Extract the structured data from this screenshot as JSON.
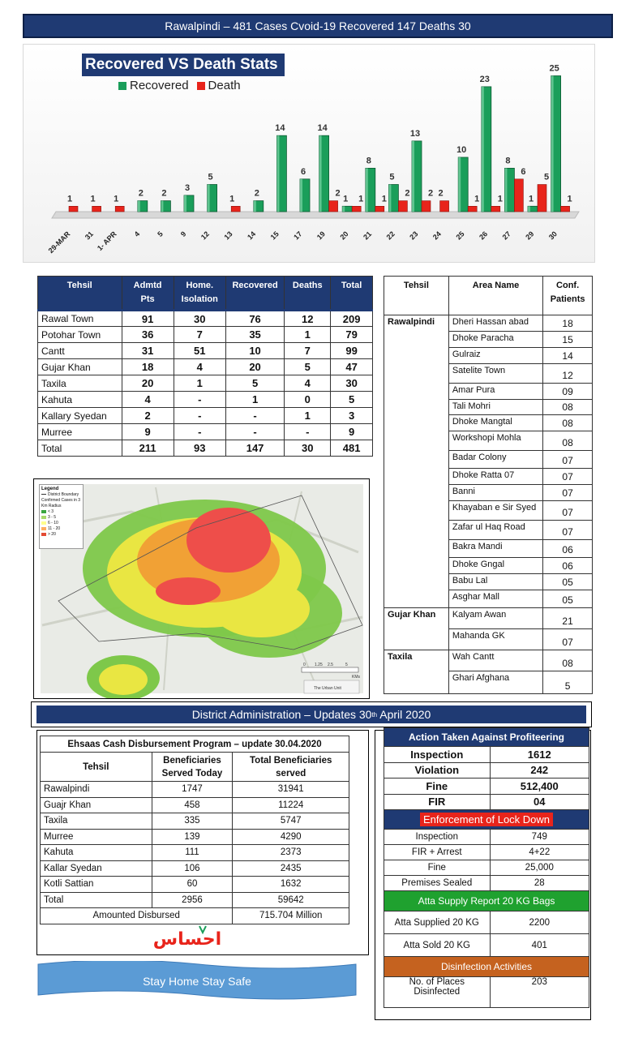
{
  "banner": "Rawalpindi – 481 Cases Cvoid-19 Recovered 147 Deaths 30",
  "chart_data": {
    "type": "bar",
    "title": "Recovered VS Death Stats",
    "categories": [
      "29-MAR",
      "31",
      "1- APR",
      "4",
      "5",
      "9",
      "12",
      "13",
      "14",
      "15",
      "17",
      "19",
      "20",
      "21",
      "22",
      "23",
      "24",
      "25",
      "26",
      "27",
      "29",
      "30"
    ],
    "series": [
      {
        "name": "Recovered",
        "color": "#1a9e5a",
        "values": [
          null,
          null,
          null,
          2,
          2,
          3,
          5,
          null,
          2,
          14,
          6,
          14,
          1,
          8,
          5,
          13,
          null,
          10,
          23,
          8,
          1,
          25
        ]
      },
      {
        "name": "Death",
        "color": "#e8241b",
        "values": [
          1,
          1,
          1,
          null,
          null,
          null,
          null,
          1,
          null,
          null,
          null,
          2,
          1,
          1,
          2,
          2,
          2,
          1,
          1,
          6,
          5,
          1
        ]
      }
    ],
    "colors": {
      "recovered": "#1a9e5a",
      "death": "#e8241b"
    }
  },
  "tehsil_table": {
    "headers": [
      "Tehsil",
      "Admtd\nPts",
      "Home.\nIsolation",
      "Recovered",
      "Deaths",
      "Total"
    ],
    "rows": [
      [
        "Rawal Town",
        "91",
        "30",
        "76",
        "12",
        "209"
      ],
      [
        "Potohar Town",
        "36",
        "7",
        "35",
        "1",
        "79"
      ],
      [
        "Cantt",
        "31",
        "51",
        "10",
        "7",
        "99"
      ],
      [
        "Gujar Khan",
        "18",
        "4",
        "20",
        "5",
        "47"
      ],
      [
        "Taxila",
        "20",
        "1",
        "5",
        "4",
        "30"
      ],
      [
        "Kahuta",
        "4",
        "-",
        "1",
        "0",
        "5"
      ],
      [
        "Kallary Syedan",
        "2",
        "-",
        "-",
        "1",
        "3"
      ],
      [
        "Murree",
        "9",
        "-",
        "-",
        "-",
        "9"
      ],
      [
        "Total",
        "211",
        "93",
        "147",
        "30",
        "481"
      ]
    ]
  },
  "area_table": {
    "headers": [
      "Tehsil",
      "Area Name",
      "Conf.\nPatients"
    ],
    "groups": [
      {
        "tehsil": "Rawalpindi",
        "rows": [
          [
            "Dheri Hassan abad",
            "18"
          ],
          [
            "Dhoke Paracha",
            "15"
          ],
          [
            "Gulraiz",
            "14"
          ],
          [
            "Satelite Town",
            "12"
          ],
          [
            "Amar Pura",
            "09"
          ],
          [
            "Tali Mohri",
            "08"
          ],
          [
            "Dhoke Mangtal",
            "08"
          ],
          [
            "Workshopi Mohla",
            "08"
          ],
          [
            "Badar Colony",
            "07"
          ],
          [
            "Dhoke Ratta 07",
            "07"
          ],
          [
            "Banni",
            "07"
          ],
          [
            "Khayaban e Sir Syed",
            "07"
          ],
          [
            "Zafar ul Haq Road",
            "07"
          ],
          [
            "Bakra Mandi",
            "06"
          ],
          [
            "Dhoke Gngal",
            "06"
          ],
          [
            "Babu Lal",
            "05"
          ],
          [
            "Asghar Mall",
            "05"
          ]
        ]
      },
      {
        "tehsil": "Gujar Khan",
        "rows": [
          [
            "Kalyam Awan",
            "21"
          ],
          [
            "Mahanda GK",
            "07"
          ]
        ]
      },
      {
        "tehsil": "Taxila",
        "rows": [
          [
            "Wah Cantt",
            "08"
          ],
          [
            "Ghari Afghana",
            "5"
          ]
        ]
      }
    ]
  },
  "map": {
    "legend_title": "Legend",
    "legend_items": [
      "District Boundary",
      "Confirmed Cases in 3 Km Radius",
      "< 3",
      "3 - 5",
      "6 - 10",
      "11 - 20",
      "> 20"
    ],
    "scale_labels": [
      "0",
      "1.25",
      "2.5",
      "5"
    ],
    "scale_unit": "KMs",
    "credit": "The Urban Unit"
  },
  "district_bar": {
    "text": "District Administration – Updates 30",
    "sup": "th",
    "text_end": " April 2020"
  },
  "ehsaas": {
    "title": "Ehsaas Cash Disbursement Program – update 30.04.2020",
    "headers": [
      "Tehsil",
      "Beneficiaries Served Today",
      "Total Beneficiaries served"
    ],
    "rows": [
      [
        "Rawalpindi",
        "1747",
        "31941"
      ],
      [
        "Guajr Khan",
        "458",
        "11224"
      ],
      [
        "Taxila",
        "335",
        "5747"
      ],
      [
        "Murree",
        "139",
        "4290"
      ],
      [
        "Kahuta",
        "111",
        "2373"
      ],
      [
        "Kallar Syedan",
        "106",
        "2435"
      ],
      [
        "Kotli Sattian",
        "60",
        "1632"
      ],
      [
        "Total",
        "2956",
        "59642"
      ]
    ],
    "amount_label": "Amounted Disbursed",
    "amount_value": "715.704 Million",
    "logo_text": "احساس"
  },
  "stay_home": "Stay Home Stay Safe",
  "profiteering": {
    "title": "Action Taken Against Profiteering",
    "rows": [
      [
        "Inspection",
        "1612"
      ],
      [
        "Violation",
        "242"
      ],
      [
        "Fine",
        "512,400"
      ],
      [
        "FIR",
        "04"
      ]
    ]
  },
  "lockdown": {
    "title": "Enforcement of Lock Down",
    "rows": [
      [
        "Inspection",
        "749"
      ],
      [
        "FIR + Arrest",
        "4+22"
      ],
      [
        "Fine",
        "25,000"
      ],
      [
        "Premises Sealed",
        "28"
      ]
    ]
  },
  "atta": {
    "title": "Atta  Supply Report 20 KG Bags",
    "rows": [
      [
        "Atta Supplied 20 KG",
        "2200"
      ],
      [
        "Atta Sold 20 KG",
        "401"
      ]
    ]
  },
  "disinfection": {
    "title": "Disinfection Activities",
    "rows": [
      [
        "No. of Places Disinfected",
        "203"
      ]
    ]
  }
}
